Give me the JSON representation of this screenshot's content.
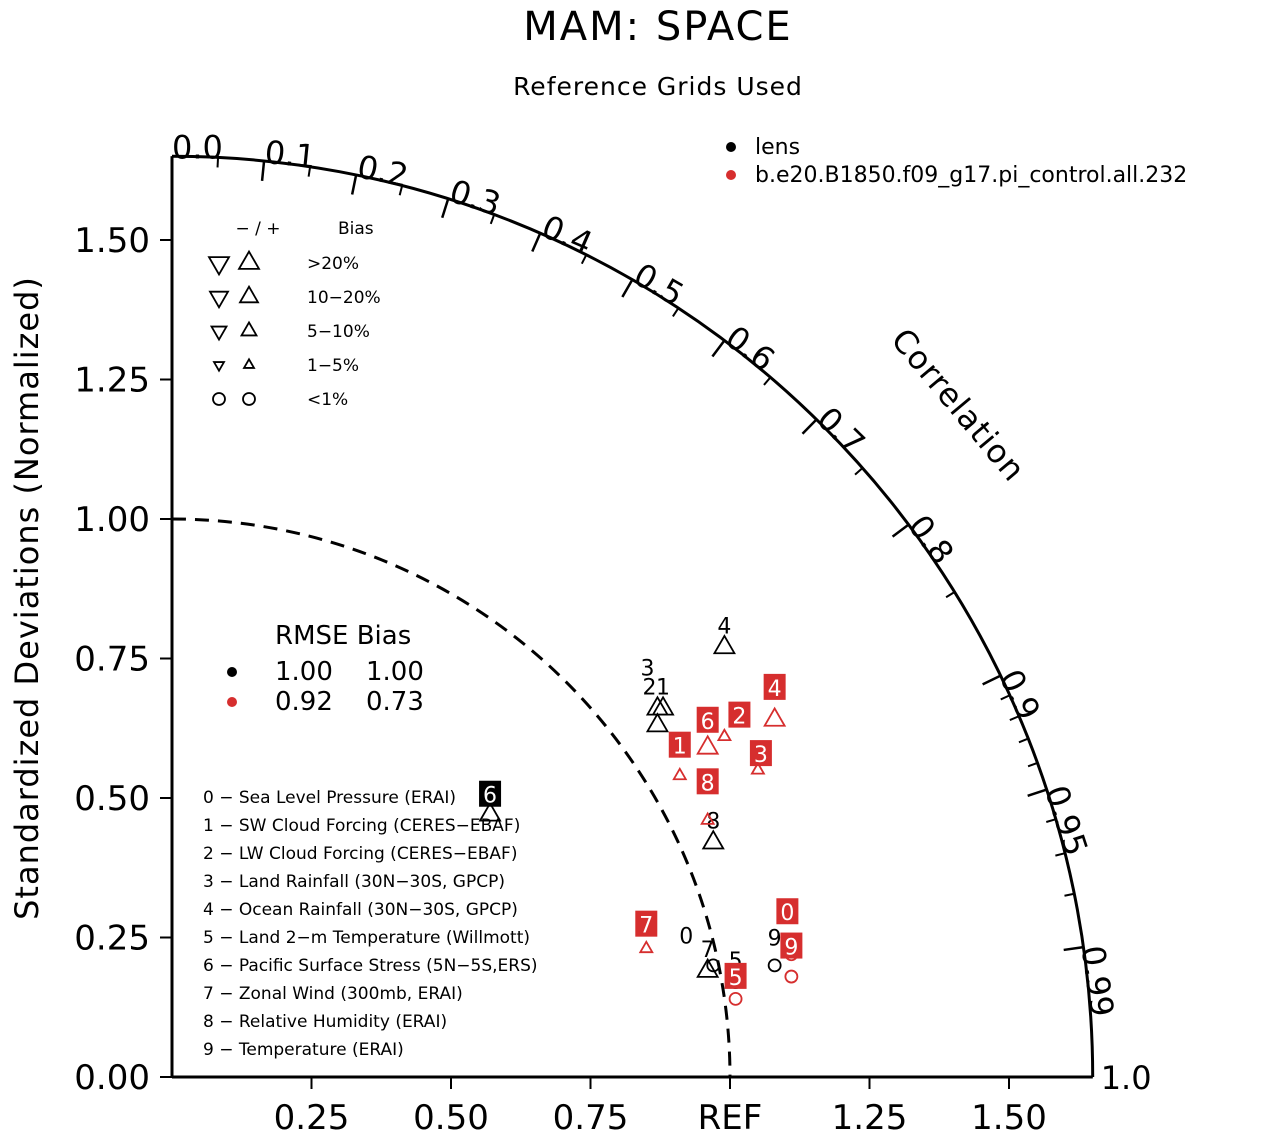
{
  "chart_data": {
    "type": "scatter",
    "subtype": "taylor-diagram",
    "title": "MAM: SPACE",
    "subtitle": "Reference Grids Used",
    "ylabel": "Standardized Deviations (Normalized)",
    "correlation_label": "Correlation",
    "reference_label": "REF",
    "std_range": [
      0,
      1.65
    ],
    "y_ticks": [
      "0.00",
      "0.25",
      "0.50",
      "0.75",
      "1.00",
      "1.25",
      "1.50"
    ],
    "x_ticks": [
      "0.25",
      "0.50",
      "0.75",
      "1.25",
      "1.50"
    ],
    "correlation_ticks": [
      "0.0",
      "0.1",
      "0.2",
      "0.3",
      "0.4",
      "0.5",
      "0.6",
      "0.7",
      "0.8",
      "0.9",
      "0.95",
      "0.99",
      "1.0"
    ],
    "reference_arc_std": 1.0,
    "series": [
      {
        "name": "lens",
        "color": "#000000",
        "points": [
          {
            "id": "0",
            "x": 0.97,
            "y": 0.2,
            "marker": "circle"
          },
          {
            "id": "1",
            "x": 0.88,
            "y": 0.66,
            "marker": "triangle-up"
          },
          {
            "id": "2",
            "x": 0.87,
            "y": 0.66,
            "marker": "triangle-up"
          },
          {
            "id": "3",
            "x": 0.87,
            "y": 0.63,
            "marker": "triangle-up"
          },
          {
            "id": "4",
            "x": 0.99,
            "y": 0.77,
            "marker": "triangle-up"
          },
          {
            "id": "5",
            "x": 1.01,
            "y": 0.17,
            "marker": "circle"
          },
          {
            "id": "6",
            "x": 0.57,
            "y": 0.47,
            "marker": "triangle-up"
          },
          {
            "id": "7",
            "x": 0.96,
            "y": 0.19,
            "marker": "triangle-up"
          },
          {
            "id": "8",
            "x": 0.97,
            "y": 0.42,
            "marker": "triangle-up"
          },
          {
            "id": "9",
            "x": 1.08,
            "y": 0.2,
            "marker": "circle"
          }
        ]
      },
      {
        "name": "b.e20.B1850.f09_g17.pi_control.all.232",
        "color": "#d62e2e",
        "points": [
          {
            "id": "0",
            "x": 1.11,
            "y": 0.22,
            "marker": "circle"
          },
          {
            "id": "1",
            "x": 0.91,
            "y": 0.54,
            "marker": "triangle-up"
          },
          {
            "id": "2",
            "x": 0.99,
            "y": 0.61,
            "marker": "triangle-up"
          },
          {
            "id": "3",
            "x": 1.05,
            "y": 0.55,
            "marker": "triangle-up"
          },
          {
            "id": "4",
            "x": 1.08,
            "y": 0.64,
            "marker": "triangle-up"
          },
          {
            "id": "5",
            "x": 1.01,
            "y": 0.14,
            "marker": "circle"
          },
          {
            "id": "6",
            "x": 0.96,
            "y": 0.59,
            "marker": "triangle-up"
          },
          {
            "id": "7",
            "x": 0.85,
            "y": 0.23,
            "marker": "triangle-up"
          },
          {
            "id": "8",
            "x": 0.96,
            "y": 0.46,
            "marker": "triangle-up"
          },
          {
            "id": "9",
            "x": 1.11,
            "y": 0.18,
            "marker": "circle"
          }
        ]
      }
    ],
    "stats_legend": {
      "header": "RMSE Bias",
      "rows": [
        {
          "color": "#000000",
          "rmse": "1.00",
          "bias": "1.00"
        },
        {
          "color": "#d62e2e",
          "rmse": "0.92",
          "bias": "0.73"
        }
      ]
    },
    "bias_legend": {
      "header_sign": "− / +",
      "header_label": "Bias",
      "rows": [
        ">20%",
        "10−20%",
        "5−10%",
        "1−5%",
        "<1%"
      ]
    },
    "variables": [
      "0 − Sea Level Pressure (ERAI)",
      "1 − SW Cloud Forcing (CERES−EBAF)",
      "2 − LW Cloud Forcing (CERES−EBAF)",
      "3 − Land Rainfall (30N−30S, GPCP)",
      "4 − Ocean Rainfall (30N−30S, GPCP)",
      "5 − Land 2−m Temperature (Willmott)",
      "6 − Pacific Surface Stress (5N−5S,ERS)",
      "7 − Zonal Wind (300mb, ERAI)",
      "8 − Relative Humidity (ERAI)",
      "9 − Temperature (ERAI)"
    ]
  }
}
